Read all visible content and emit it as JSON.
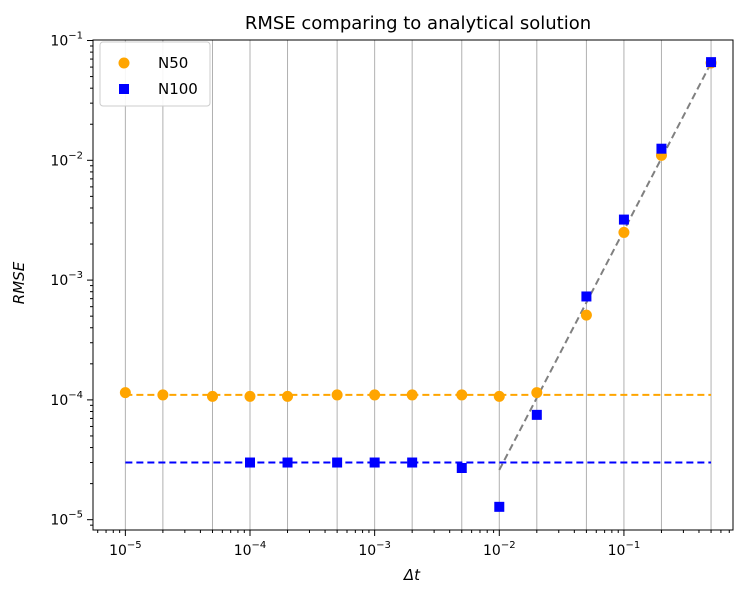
{
  "chart_data": {
    "type": "scatter",
    "title": "RMSE comparing to analytical solution",
    "xlabel": "Δt",
    "ylabel": "RMSE",
    "xscale": "log",
    "yscale": "log",
    "xlim": [
      5.5e-06,
      0.75
    ],
    "ylim": [
      8.2e-06,
      0.101
    ],
    "grid": "x-major",
    "legend_position": "top-left",
    "x_ticks": [
      {
        "base": "10",
        "exp": "−5",
        "value": 1e-05
      },
      {
        "base": "10",
        "exp": "−4",
        "value": 0.0001
      },
      {
        "base": "10",
        "exp": "−3",
        "value": 0.001
      },
      {
        "base": "10",
        "exp": "−2",
        "value": 0.01
      },
      {
        "base": "10",
        "exp": "−1",
        "value": 0.1
      }
    ],
    "y_ticks": [
      {
        "base": "10",
        "exp": "−5",
        "value": 1e-05
      },
      {
        "base": "10",
        "exp": "−4",
        "value": 0.0001
      },
      {
        "base": "10",
        "exp": "−3",
        "value": 0.001
      },
      {
        "base": "10",
        "exp": "−2",
        "value": 0.01
      },
      {
        "base": "10",
        "exp": "−1",
        "value": 0.1
      }
    ],
    "grid_x": [
      1e-05,
      2e-05,
      5e-05,
      0.0001,
      0.0002,
      0.0005,
      0.001,
      0.002,
      0.005,
      0.01,
      0.02,
      0.05,
      0.1,
      0.2,
      0.5
    ],
    "series": [
      {
        "name": "N50",
        "color": "#ffa500",
        "marker": "circle",
        "points": [
          [
            1e-05,
            0.000115
          ],
          [
            2e-05,
            0.00011
          ],
          [
            5e-05,
            0.000107
          ],
          [
            0.0001,
            0.000107
          ],
          [
            0.0002,
            0.000107
          ],
          [
            0.0005,
            0.00011
          ],
          [
            0.001,
            0.00011
          ],
          [
            0.002,
            0.00011
          ],
          [
            0.005,
            0.00011
          ],
          [
            0.01,
            0.000107
          ],
          [
            0.02,
            0.000115
          ],
          [
            0.05,
            0.00051
          ],
          [
            0.1,
            0.0025
          ],
          [
            0.2,
            0.011
          ],
          [
            0.5,
            0.065
          ]
        ]
      },
      {
        "name": "N100",
        "color": "#0000ff",
        "marker": "square",
        "points": [
          [
            0.0001,
            3e-05
          ],
          [
            0.0002,
            3e-05
          ],
          [
            0.0005,
            3e-05
          ],
          [
            0.001,
            3e-05
          ],
          [
            0.002,
            3e-05
          ],
          [
            0.005,
            2.7e-05
          ],
          [
            0.01,
            1.28e-05
          ],
          [
            0.02,
            7.5e-05
          ],
          [
            0.05,
            0.00073
          ],
          [
            0.1,
            0.0032
          ],
          [
            0.2,
            0.0125
          ],
          [
            0.5,
            0.066
          ]
        ]
      }
    ],
    "reference_lines": [
      {
        "color": "#ffa500",
        "style": "dashed",
        "points": [
          [
            1e-05,
            0.00011
          ],
          [
            0.5,
            0.00011
          ]
        ]
      },
      {
        "color": "#0000ff",
        "style": "dashed",
        "points": [
          [
            1e-05,
            3e-05
          ],
          [
            0.5,
            3e-05
          ]
        ]
      },
      {
        "color": "#808080",
        "style": "dashed",
        "points": [
          [
            0.01,
            2.6e-05
          ],
          [
            0.5,
            0.065
          ]
        ]
      }
    ]
  }
}
